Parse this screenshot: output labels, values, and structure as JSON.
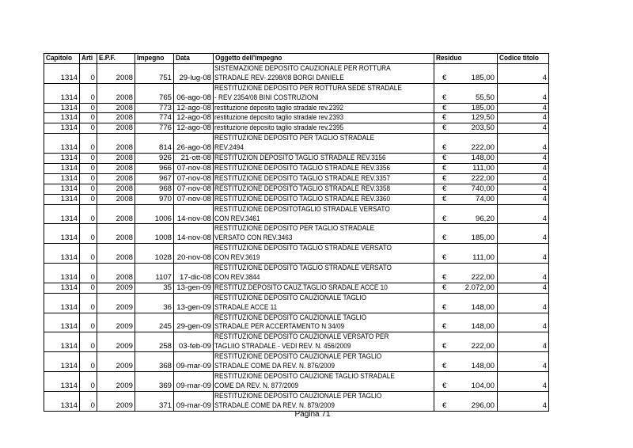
{
  "headers": [
    "Capitolo",
    "Arti",
    "E.P.F.",
    "Impegno",
    "Data",
    "Oggetto dell'impegno",
    "Residuo",
    "Codice titolo"
  ],
  "currency": "€",
  "rows": [
    {
      "capitolo": "1314",
      "arti": "0",
      "epf": "2008",
      "impegno": "751",
      "data": "29-lug-08",
      "oggetto": [
        "SISTEMAZIONE DEPOSITO CAUZIONALE PER ROTTURA",
        "STRADALE REV-.2298/08 BORGI DANIELE"
      ],
      "residuo": "185,00",
      "codice": "4"
    },
    {
      "capitolo": "1314",
      "arti": "0",
      "epf": "2008",
      "impegno": "765",
      "data": "06-ago-08",
      "oggetto": [
        "RESTITUZIONE DEPOSITO PER ROTTURA SEDE STRADALE",
        "- REV 2354/08 BINI COSTRUZIONI"
      ],
      "residuo": "55,50",
      "codice": "4"
    },
    {
      "capitolo": "1314",
      "arti": "0",
      "epf": "2008",
      "impegno": "773",
      "data": "12-ago-08",
      "oggetto": [
        "restituzione deposito taglio stradale rev.2392"
      ],
      "residuo": "185,00",
      "codice": "4"
    },
    {
      "capitolo": "1314",
      "arti": "0",
      "epf": "2008",
      "impegno": "774",
      "data": "12-ago-08",
      "oggetto": [
        "restituzione deposito taglio stradale rev.2393"
      ],
      "residuo": "129,50",
      "codice": "4"
    },
    {
      "capitolo": "1314",
      "arti": "0",
      "epf": "2008",
      "impegno": "776",
      "data": "12-ago-08",
      "oggetto": [
        "restituzione deposito taglio stradale rev.2395"
      ],
      "residuo": "203,50",
      "codice": "4"
    },
    {
      "capitolo": "1314",
      "arti": "0",
      "epf": "2008",
      "impegno": "814",
      "data": "26-ago-08",
      "oggetto": [
        "RESTITUZIONE DEPOSITO PER TAGLIO STRADALE",
        "REV.2494"
      ],
      "residuo": "222,00",
      "codice": "4"
    },
    {
      "capitolo": "1314",
      "arti": "0",
      "epf": "2008",
      "impegno": "926",
      "data": "21-ott-08",
      "oggetto": [
        "RESTITUZION DEPOSITO TAGLIO STRADALE REV.3156"
      ],
      "residuo": "148,00",
      "codice": "4"
    },
    {
      "capitolo": "1314",
      "arti": "0",
      "epf": "2008",
      "impegno": "966",
      "data": "07-nov-08",
      "oggetto": [
        "RESTITUZIONE DEPOSITO TAGLIO STRADALE REV.3356"
      ],
      "residuo": "111,00",
      "codice": "4"
    },
    {
      "capitolo": "1314",
      "arti": "0",
      "epf": "2008",
      "impegno": "967",
      "data": "07-nov-08",
      "oggetto": [
        "RESTITUZIONE DEPOSITO TAGLIO STRADALE REV.3357"
      ],
      "residuo": "222,00",
      "codice": "4"
    },
    {
      "capitolo": "1314",
      "arti": "0",
      "epf": "2008",
      "impegno": "968",
      "data": "07-nov-08",
      "oggetto": [
        "RESTITUZIONE DEPOSITO TAGLIO STRADALE REV.3358"
      ],
      "residuo": "740,00",
      "codice": "4"
    },
    {
      "capitolo": "1314",
      "arti": "0",
      "epf": "2008",
      "impegno": "970",
      "data": "07-nov-08",
      "oggetto": [
        "RESTITUZIONE DEPOSITO TAGLIO STRADALE REV.3360"
      ],
      "residuo": "74,00",
      "codice": "4"
    },
    {
      "capitolo": "1314",
      "arti": "0",
      "epf": "2008",
      "impegno": "1006",
      "data": "14-nov-08",
      "oggetto": [
        "RESTITUZIONE DEPOSITOTAGLIO STRADALE VERSATO",
        "CON REV.3461"
      ],
      "residuo": "96,20",
      "codice": "4"
    },
    {
      "capitolo": "1314",
      "arti": "0",
      "epf": "2008",
      "impegno": "1008",
      "data": "14-nov-08",
      "oggetto": [
        "RESTITUZIONE DEPOSITO PER TAGLIO STRADALE",
        "VERSATO CON REV.3463"
      ],
      "residuo": "185,00",
      "codice": "4"
    },
    {
      "capitolo": "1314",
      "arti": "0",
      "epf": "2008",
      "impegno": "1028",
      "data": "20-nov-08",
      "oggetto": [
        "RESTITUZIONE DEPOSITO TAGLIO STRADALE VERSATO",
        "CON REV.3619"
      ],
      "residuo": "111,00",
      "codice": "4"
    },
    {
      "capitolo": "1314",
      "arti": "0",
      "epf": "2008",
      "impegno": "1107",
      "data": "17-dic-08",
      "oggetto": [
        "RESTITUZIONE DEPOSITO TAGLIO STRADALE VERSATO",
        "CON REV.3844"
      ],
      "residuo": "222,00",
      "codice": "4"
    },
    {
      "capitolo": "1314",
      "arti": "0",
      "epf": "2009",
      "impegno": "35",
      "data": "13-gen-09",
      "oggetto": [
        "RESTITUZ.DEPOSITO CAUZ.TAGLIO SRADALE ACCE 10"
      ],
      "residuo": "2.072,00",
      "codice": "4"
    },
    {
      "capitolo": "1314",
      "arti": "0",
      "epf": "2009",
      "impegno": "36",
      "data": "13-gen-09",
      "oggetto": [
        "RESTITUZIONE DEPOSITO CAUZIONALE TAGLIO",
        "STRADALE ACCE 11"
      ],
      "residuo": "148,00",
      "codice": "4"
    },
    {
      "capitolo": "1314",
      "arti": "0",
      "epf": "2009",
      "impegno": "245",
      "data": "29-gen-09",
      "oggetto": [
        "RESTITUZIONE DEPOSITO CAUZIONALE TAGLIO",
        "STRADALE PER ACCERTAMENTO N 34/09"
      ],
      "residuo": "148,00",
      "codice": "4"
    },
    {
      "capitolo": "1314",
      "arti": "0",
      "epf": "2009",
      "impegno": "258",
      "data": "03-feb-09",
      "oggetto": [
        "RESTITUZIONE DEPOSITO CAUZIONALE VERSATO PER",
        "TAGLIIO STRADALE - VEDI REV. N. 456/2009"
      ],
      "residuo": "222,00",
      "codice": "4"
    },
    {
      "capitolo": "1314",
      "arti": "0",
      "epf": "2009",
      "impegno": "368",
      "data": "09-mar-09",
      "oggetto": [
        "RESTITUZIONE DEPOSITO CAUZIONALE PER TAGLIO",
        "STRADALE COME DA REV. N. 876/2009"
      ],
      "residuo": "148,00",
      "codice": "4"
    },
    {
      "capitolo": "1314",
      "arti": "0",
      "epf": "2009",
      "impegno": "369",
      "data": "09-mar-09",
      "oggetto": [
        "RESTITUZIONE DEPOSITO CAUZIONE TAGLIO STRADALE",
        "COME DA REV. N. 877/2009"
      ],
      "residuo": "104,00",
      "codice": "4"
    },
    {
      "capitolo": "1314",
      "arti": "0",
      "epf": "2009",
      "impegno": "371",
      "data": "09-mar-09",
      "oggetto": [
        "RESTITUZIONE DEPOSITO CAUZIONALE PER TAGLIO",
        "STRADALE COME DA REV. N. 879/2009"
      ],
      "residuo": "296,00",
      "codice": "4"
    }
  ],
  "footer": "Pagina 71"
}
